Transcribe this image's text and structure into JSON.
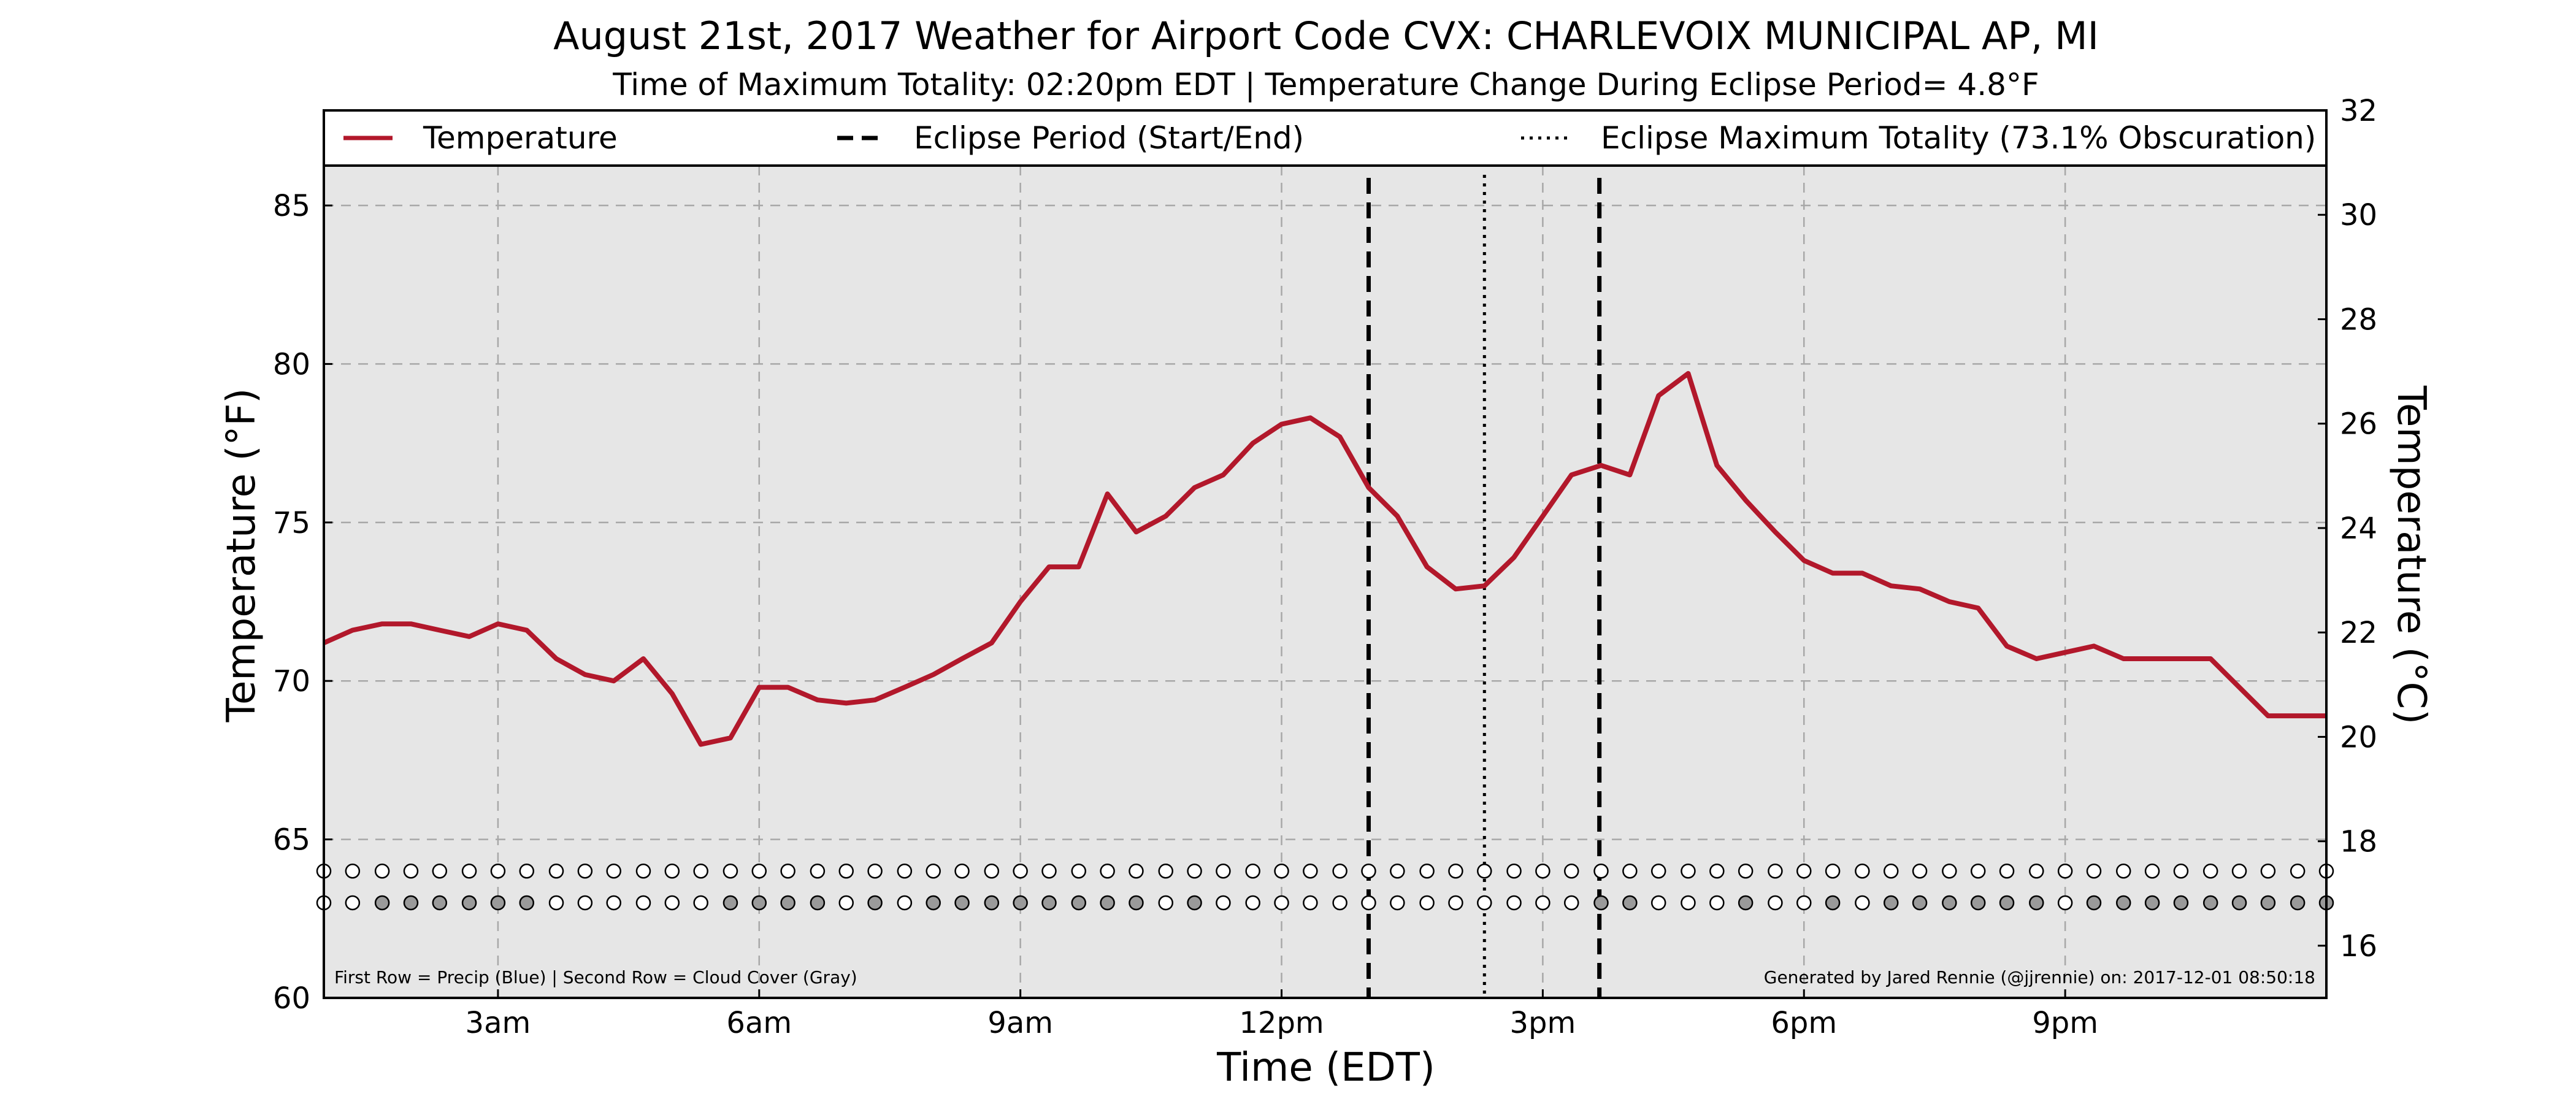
{
  "chart_data": {
    "type": "line",
    "title": "August 21st, 2017 Weather for Airport Code CVX: CHARLEVOIX MUNICIPAL AP, MI",
    "subtitle": "Time of Maximum Totality: 02:20pm EDT | Temperature Change During Eclipse Period= 4.8°F",
    "xlabel": "Time (EDT)",
    "ylabel": "Temperature (°F)",
    "ylabel_right": "Temperature (°C)",
    "x_range_hours": [
      1.0,
      24.0
    ],
    "ylim": [
      60,
      88
    ],
    "ylim_right": [
      15,
      32
    ],
    "x_ticks": [
      {
        "hour": 3,
        "label": "3am"
      },
      {
        "hour": 6,
        "label": "6am"
      },
      {
        "hour": 9,
        "label": "9am"
      },
      {
        "hour": 12,
        "label": "12pm"
      },
      {
        "hour": 15,
        "label": "3pm"
      },
      {
        "hour": 18,
        "label": "6pm"
      },
      {
        "hour": 21,
        "label": "9pm"
      }
    ],
    "y_ticks": [
      60,
      65,
      70,
      75,
      80,
      85
    ],
    "y_ticks_right": [
      16,
      18,
      20,
      22,
      24,
      26,
      28,
      30,
      32
    ],
    "grid": true,
    "background": "#e6e6e6",
    "legend": {
      "placement": "top",
      "entries": [
        {
          "label": "Temperature",
          "style": "solid",
          "color": "#b2182b"
        },
        {
          "label": "Eclipse Period (Start/End)",
          "style": "dashed",
          "color": "#000000"
        },
        {
          "label": "Eclipse Maximum Totality (73.1% Obscuration)",
          "style": "dotted",
          "color": "#000000"
        }
      ]
    },
    "series": [
      {
        "name": "Temperature",
        "color": "#b2182b",
        "x": [
          1.0,
          1.33,
          1.67,
          2.0,
          2.33,
          2.67,
          3.0,
          3.33,
          3.67,
          4.0,
          4.33,
          4.67,
          5.0,
          5.33,
          5.67,
          6.0,
          6.33,
          6.67,
          7.0,
          7.33,
          7.67,
          8.0,
          8.33,
          8.67,
          9.0,
          9.33,
          9.67,
          10.0,
          10.33,
          10.67,
          11.0,
          11.33,
          11.67,
          12.0,
          12.33,
          12.67,
          13.0,
          13.33,
          13.67,
          14.0,
          14.33,
          14.67,
          15.0,
          15.33,
          15.67,
          16.0,
          16.33,
          16.67,
          17.0,
          17.33,
          17.67,
          18.0,
          18.33,
          18.67,
          19.0,
          19.33,
          19.67,
          20.0,
          20.33,
          20.67,
          21.0,
          21.33,
          21.67,
          22.0,
          22.33,
          22.67,
          23.0,
          23.33,
          23.67,
          24.0
        ],
        "values": [
          71.2,
          71.6,
          71.8,
          71.8,
          71.6,
          71.4,
          71.8,
          71.6,
          70.7,
          70.2,
          70.0,
          70.7,
          69.6,
          68.0,
          68.2,
          69.8,
          69.8,
          69.4,
          69.3,
          69.4,
          69.8,
          70.2,
          70.7,
          71.2,
          72.5,
          73.6,
          73.6,
          75.9,
          74.7,
          75.2,
          76.1,
          76.5,
          77.5,
          78.1,
          78.3,
          77.7,
          76.1,
          75.2,
          73.6,
          72.9,
          73.0,
          73.9,
          75.2,
          76.5,
          76.8,
          76.5,
          79.0,
          79.7,
          76.8,
          75.7,
          74.7,
          73.8,
          73.4,
          73.4,
          73.0,
          72.9,
          72.5,
          72.3,
          71.1,
          70.7,
          70.9,
          71.1,
          70.7,
          70.7,
          70.7,
          70.7,
          69.8,
          68.9,
          68.9,
          68.9
        ]
      }
    ],
    "eclipse_start_hour": 13.0,
    "eclipse_end_hour": 15.65,
    "eclipse_max_hour": 14.33,
    "precip_row": {
      "value": 64,
      "fill": [
        0,
        0,
        0,
        0,
        0,
        0,
        0,
        0,
        0,
        0,
        0,
        0,
        0,
        0,
        0,
        0,
        0,
        0,
        0,
        0,
        0,
        0,
        0,
        0,
        0,
        0,
        0,
        0,
        0,
        0,
        0,
        0,
        0,
        0,
        0,
        0,
        0,
        0,
        0,
        0,
        0,
        0,
        0,
        0,
        0,
        0,
        0,
        0,
        0,
        0,
        0,
        0,
        0,
        0,
        0,
        0,
        0,
        0,
        0,
        0,
        0,
        0,
        0,
        0,
        0,
        0,
        0,
        0,
        0,
        0
      ]
    },
    "cloud_row": {
      "value": 63,
      "fill": [
        0,
        0,
        1,
        1,
        1,
        1,
        1,
        1,
        0,
        0,
        0,
        0,
        0,
        0,
        1,
        1,
        1,
        1,
        0,
        1,
        0,
        1,
        1,
        1,
        1,
        1,
        1,
        1,
        1,
        0,
        1,
        0,
        0,
        0,
        0,
        0,
        0,
        0,
        0,
        0,
        0,
        0,
        0,
        0,
        1,
        1,
        0,
        0,
        0,
        1,
        0,
        0,
        1,
        0,
        1,
        1,
        1,
        1,
        1,
        1,
        0,
        1,
        1,
        1,
        1,
        1,
        1,
        1,
        1,
        1
      ]
    },
    "footnote_left": "First Row = Precip (Blue) | Second Row = Cloud Cover (Gray)",
    "footnote_right": "Generated by Jared Rennie (@jjrennie) on: 2017-12-01 08:50:18"
  }
}
